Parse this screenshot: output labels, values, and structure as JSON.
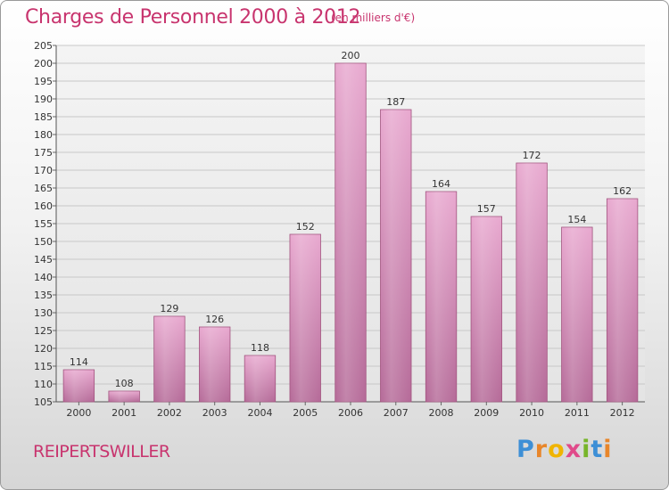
{
  "header": {
    "title": "Charges de Personnel 2000 à 2012",
    "subtitle": "(en milliers d'€)"
  },
  "footer": {
    "commune": "REIPERTSWILLER",
    "logo_letters": [
      "P",
      "r",
      "o",
      "x",
      "i",
      "t",
      "i"
    ],
    "logo_colors": [
      "#3d8fd6",
      "#e8862a",
      "#f0b400",
      "#e04a8a",
      "#77b52a",
      "#3d8fd6",
      "#e8862a"
    ]
  },
  "colors": {
    "title": "#c8346e",
    "bar_fill_top": "#e8a8cf",
    "bar_fill_bottom": "#b56a98",
    "bar_edge": "#a2547f",
    "grid": "#c8c8c8",
    "plot_bg_top": "#f2f2f2",
    "plot_bg_bottom": "#e6e6e6"
  },
  "chart_data": {
    "type": "bar",
    "title": "Charges de Personnel 2000 à 2012",
    "subtitle": "(en milliers d'€)",
    "categories": [
      "2000",
      "2001",
      "2002",
      "2003",
      "2004",
      "2005",
      "2006",
      "2007",
      "2008",
      "2009",
      "2010",
      "2011",
      "2012"
    ],
    "values": [
      114,
      108,
      129,
      126,
      118,
      152,
      200,
      187,
      164,
      157,
      172,
      154,
      162
    ],
    "ylim": [
      105,
      205
    ],
    "ytick_step": 5,
    "xlabel": "",
    "ylabel": "",
    "grid": true,
    "legend": "none"
  }
}
